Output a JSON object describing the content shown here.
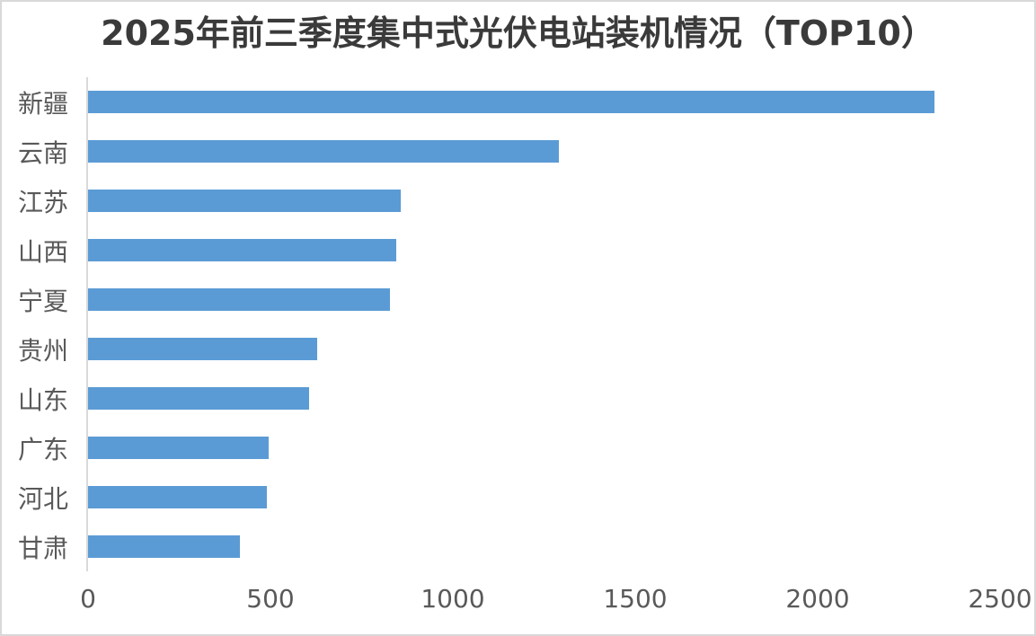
{
  "frame": {
    "background": "#ffffff",
    "border_color": "#d9d9d9"
  },
  "chart_data": {
    "type": "bar",
    "orientation": "horizontal",
    "title": "2025年前三季度集中式光伏电站装机情况（TOP10）",
    "categories": [
      "新疆",
      "云南",
      "江苏",
      "山西",
      "宁夏",
      "贵州",
      "山东",
      "广东",
      "河北",
      "甘肃"
    ],
    "values": [
      2320,
      1291,
      858,
      846,
      827,
      627,
      606,
      496,
      489,
      416
    ],
    "x_ticks": [
      0,
      500,
      1000,
      1500,
      2000,
      2500
    ],
    "xlim": [
      0,
      2500
    ],
    "xlabel": "",
    "ylabel": "",
    "grid": false,
    "legend": false,
    "bar_color": "#5b9bd5",
    "axis_line_color": "#d9d9d9",
    "tick_label_color": "#595959",
    "category_label_color": "#595959",
    "title_color": "#3a3a3a"
  }
}
